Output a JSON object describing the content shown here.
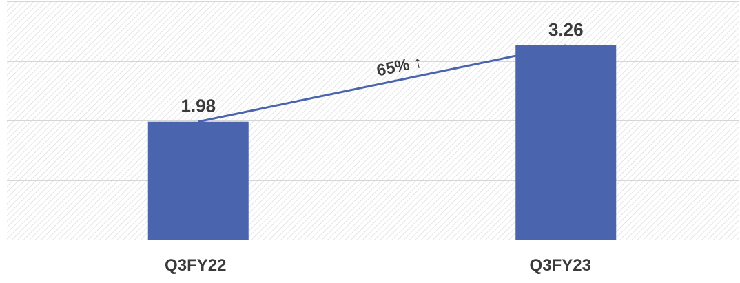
{
  "chart_data": {
    "type": "bar",
    "categories": [
      "Q3FY22",
      "Q3FY23"
    ],
    "values": [
      1.98,
      3.26
    ],
    "data_labels": [
      "1.98",
      "3.26"
    ],
    "ylim": [
      0,
      4
    ],
    "grid": true,
    "trend_annotation": "65% ↑",
    "colors": {
      "bar": "#4a65ad",
      "trend_line": "#4a65ad",
      "grid": "#d6d6d6",
      "hatch": "#e6e6e6",
      "label": "#3a3a3a",
      "annotation": "#111111"
    }
  }
}
